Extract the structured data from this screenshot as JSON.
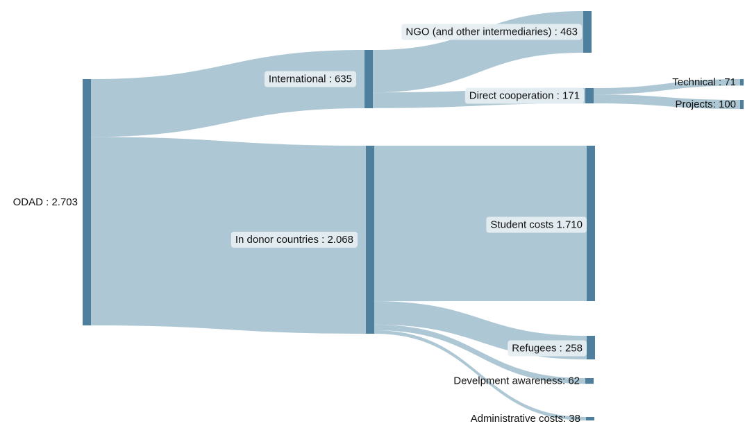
{
  "chart_data": {
    "type": "sankey",
    "nodes": [
      {
        "id": "odad",
        "label": "ODAD : 2.703",
        "value": 2703
      },
      {
        "id": "international",
        "label": "International : 635",
        "value": 635
      },
      {
        "id": "donor",
        "label": "In donor countries : 2.068",
        "value": 2068
      },
      {
        "id": "ngo",
        "label": "NGO (and other intermediaries) : 463",
        "value": 463
      },
      {
        "id": "direct",
        "label": "Direct cooperation : 171",
        "value": 171
      },
      {
        "id": "technical",
        "label": "Technical : 71",
        "value": 71
      },
      {
        "id": "projects",
        "label": "Projects: 100",
        "value": 100
      },
      {
        "id": "student",
        "label": "Student costs 1.710",
        "value": 1710
      },
      {
        "id": "refugees",
        "label": "Refugees : 258",
        "value": 258
      },
      {
        "id": "awareness",
        "label": "Develpment awareness: 62",
        "value": 62
      },
      {
        "id": "admin",
        "label": "Administrative costs: 38",
        "value": 38
      }
    ],
    "links": [
      {
        "source": "odad",
        "target": "international",
        "value": 635
      },
      {
        "source": "odad",
        "target": "donor",
        "value": 2068
      },
      {
        "source": "international",
        "target": "ngo",
        "value": 463
      },
      {
        "source": "international",
        "target": "direct",
        "value": 171
      },
      {
        "source": "direct",
        "target": "technical",
        "value": 71
      },
      {
        "source": "direct",
        "target": "projects",
        "value": 100
      },
      {
        "source": "donor",
        "target": "student",
        "value": 1710
      },
      {
        "source": "donor",
        "target": "refugees",
        "value": 258
      },
      {
        "source": "donor",
        "target": "awareness",
        "value": 62
      },
      {
        "source": "donor",
        "target": "admin",
        "value": 38
      }
    ]
  }
}
